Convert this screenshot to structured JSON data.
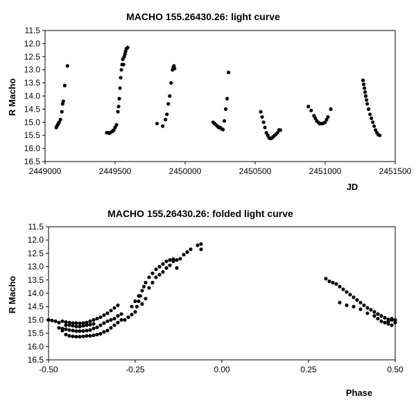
{
  "chart_data": [
    {
      "type": "scatter",
      "title": "MACHO 155.26430.26: light curve",
      "xlabel": "JD",
      "ylabel": "R Macho",
      "xlim": [
        2449000,
        2451500
      ],
      "ylim": [
        11.5,
        16.5
      ],
      "y_inverted": true,
      "grid": false,
      "legend": "none",
      "marker_color": "#000000",
      "x_ticks": [
        "2449000",
        "2449500",
        "2450000",
        "2450500",
        "2451000",
        "2451500"
      ],
      "y_ticks": [
        "11.5",
        "12.0",
        "12.5",
        "13.0",
        "13.5",
        "14.0",
        "14.5",
        "15.0",
        "15.5",
        "16.0",
        "16.5"
      ],
      "series": [
        {
          "points": [
            [
              2449080,
              15.2
            ],
            [
              2449085,
              15.15
            ],
            [
              2449090,
              15.1
            ],
            [
              2449095,
              15.05
            ],
            [
              2449100,
              15.0
            ],
            [
              2449110,
              14.9
            ],
            [
              2449120,
              14.6
            ],
            [
              2449125,
              14.3
            ],
            [
              2449130,
              14.2
            ],
            [
              2449140,
              13.6
            ],
            [
              2449160,
              12.85
            ],
            [
              2449440,
              15.4
            ],
            [
              2449450,
              15.4
            ],
            [
              2449460,
              15.42
            ],
            [
              2449470,
              15.38
            ],
            [
              2449480,
              15.35
            ],
            [
              2449490,
              15.3
            ],
            [
              2449500,
              15.2
            ],
            [
              2449510,
              15.1
            ],
            [
              2449520,
              14.6
            ],
            [
              2449525,
              14.4
            ],
            [
              2449530,
              14.1
            ],
            [
              2449535,
              13.7
            ],
            [
              2449540,
              13.3
            ],
            [
              2449545,
              13.0
            ],
            [
              2449550,
              12.8
            ],
            [
              2449555,
              12.6
            ],
            [
              2449560,
              12.8
            ],
            [
              2449565,
              12.5
            ],
            [
              2449570,
              12.4
            ],
            [
              2449575,
              12.3
            ],
            [
              2449580,
              12.2
            ],
            [
              2449590,
              12.15
            ],
            [
              2449800,
              15.05
            ],
            [
              2449840,
              15.15
            ],
            [
              2449860,
              14.9
            ],
            [
              2449870,
              14.7
            ],
            [
              2449880,
              14.3
            ],
            [
              2449890,
              14.0
            ],
            [
              2449900,
              13.5
            ],
            [
              2449910,
              13.0
            ],
            [
              2449915,
              12.9
            ],
            [
              2449920,
              12.85
            ],
            [
              2449925,
              12.95
            ],
            [
              2450200,
              15.0
            ],
            [
              2450210,
              15.05
            ],
            [
              2450220,
              15.1
            ],
            [
              2450230,
              15.15
            ],
            [
              2450240,
              15.2
            ],
            [
              2450250,
              15.2
            ],
            [
              2450260,
              15.25
            ],
            [
              2450270,
              15.28
            ],
            [
              2450280,
              14.95
            ],
            [
              2450290,
              14.5
            ],
            [
              2450300,
              14.1
            ],
            [
              2450310,
              13.1
            ],
            [
              2450540,
              14.6
            ],
            [
              2450550,
              14.8
            ],
            [
              2450560,
              15.0
            ],
            [
              2450570,
              15.2
            ],
            [
              2450580,
              15.4
            ],
            [
              2450590,
              15.5
            ],
            [
              2450600,
              15.6
            ],
            [
              2450610,
              15.62
            ],
            [
              2450620,
              15.6
            ],
            [
              2450630,
              15.55
            ],
            [
              2450640,
              15.5
            ],
            [
              2450650,
              15.45
            ],
            [
              2450660,
              15.4
            ],
            [
              2450670,
              15.3
            ],
            [
              2450680,
              15.3
            ],
            [
              2450880,
              14.4
            ],
            [
              2450900,
              14.55
            ],
            [
              2450920,
              14.75
            ],
            [
              2450930,
              14.85
            ],
            [
              2450940,
              14.95
            ],
            [
              2450950,
              15.0
            ],
            [
              2450960,
              15.05
            ],
            [
              2450970,
              15.05
            ],
            [
              2450980,
              15.05
            ],
            [
              2450990,
              15.03
            ],
            [
              2451000,
              15.0
            ],
            [
              2451010,
              14.9
            ],
            [
              2451020,
              14.8
            ],
            [
              2451040,
              14.5
            ],
            [
              2451270,
              13.4
            ],
            [
              2451275,
              13.55
            ],
            [
              2451280,
              13.7
            ],
            [
              2451285,
              13.85
            ],
            [
              2451290,
              14.0
            ],
            [
              2451295,
              14.15
            ],
            [
              2451300,
              14.3
            ],
            [
              2451310,
              14.5
            ],
            [
              2451320,
              14.7
            ],
            [
              2451330,
              14.85
            ],
            [
              2451340,
              15.0
            ],
            [
              2451350,
              15.15
            ],
            [
              2451360,
              15.3
            ],
            [
              2451370,
              15.4
            ],
            [
              2451380,
              15.48
            ],
            [
              2451390,
              15.5
            ]
          ]
        }
      ]
    },
    {
      "type": "scatter",
      "title": "MACHO 155.26430.26: folded light curve",
      "xlabel": "Phase",
      "ylabel": "R Macho",
      "xlim": [
        -0.5,
        0.5
      ],
      "ylim": [
        11.5,
        16.5
      ],
      "y_inverted": true,
      "grid": false,
      "legend": "none",
      "marker_color": "#000000",
      "x_ticks": [
        "-0.50",
        "-0.25",
        "0.00",
        "0.25",
        "0.50"
      ],
      "y_ticks": [
        "11.5",
        "12.0",
        "12.5",
        "13.0",
        "13.5",
        "14.0",
        "14.5",
        "15.0",
        "15.5",
        "16.0",
        "16.5"
      ],
      "series": [
        {
          "points": [
            [
              -0.5,
              15.0
            ],
            [
              -0.49,
              15.02
            ],
            [
              -0.48,
              15.05
            ],
            [
              -0.47,
              15.1
            ],
            [
              -0.46,
              15.4
            ],
            [
              -0.45,
              15.55
            ],
            [
              -0.44,
              15.6
            ],
            [
              -0.43,
              15.62
            ],
            [
              -0.42,
              15.63
            ],
            [
              -0.41,
              15.63
            ],
            [
              -0.4,
              15.62
            ],
            [
              -0.39,
              15.6
            ],
            [
              -0.38,
              15.6
            ],
            [
              -0.37,
              15.58
            ],
            [
              -0.36,
              15.55
            ],
            [
              -0.35,
              15.52
            ],
            [
              -0.34,
              15.45
            ],
            [
              -0.33,
              15.4
            ],
            [
              -0.32,
              15.3
            ],
            [
              -0.31,
              15.2
            ],
            [
              -0.3,
              15.1
            ],
            [
              -0.29,
              15.0
            ],
            [
              -0.47,
              15.3
            ],
            [
              -0.46,
              15.32
            ],
            [
              -0.45,
              15.35
            ],
            [
              -0.44,
              15.38
            ],
            [
              -0.43,
              15.4
            ],
            [
              -0.42,
              15.42
            ],
            [
              -0.41,
              15.42
            ],
            [
              -0.4,
              15.42
            ],
            [
              -0.39,
              15.4
            ],
            [
              -0.38,
              15.38
            ],
            [
              -0.37,
              15.32
            ],
            [
              -0.36,
              15.28
            ],
            [
              -0.35,
              15.2
            ],
            [
              -0.34,
              15.12
            ],
            [
              -0.33,
              15.05
            ],
            [
              -0.32,
              15.0
            ],
            [
              -0.31,
              14.95
            ],
            [
              -0.3,
              14.85
            ],
            [
              -0.29,
              14.78
            ],
            [
              -0.46,
              15.05
            ],
            [
              -0.45,
              15.08
            ],
            [
              -0.44,
              15.1
            ],
            [
              -0.43,
              15.12
            ],
            [
              -0.42,
              15.12
            ],
            [
              -0.41,
              15.13
            ],
            [
              -0.4,
              15.12
            ],
            [
              -0.39,
              15.1
            ],
            [
              -0.38,
              15.05
            ],
            [
              -0.37,
              15.0
            ],
            [
              -0.36,
              14.95
            ],
            [
              -0.35,
              14.9
            ],
            [
              -0.34,
              14.82
            ],
            [
              -0.33,
              14.75
            ],
            [
              -0.32,
              14.65
            ],
            [
              -0.31,
              14.55
            ],
            [
              -0.3,
              14.45
            ],
            [
              -0.45,
              15.2
            ],
            [
              -0.44,
              15.2
            ],
            [
              -0.43,
              15.22
            ],
            [
              -0.42,
              15.25
            ],
            [
              -0.41,
              15.25
            ],
            [
              -0.4,
              15.22
            ],
            [
              -0.39,
              15.2
            ],
            [
              -0.38,
              15.18
            ],
            [
              -0.37,
              15.15
            ],
            [
              -0.28,
              15.0
            ],
            [
              -0.27,
              14.9
            ],
            [
              -0.26,
              14.8
            ],
            [
              -0.25,
              14.7
            ],
            [
              -0.245,
              14.5
            ],
            [
              -0.24,
              14.3
            ],
            [
              -0.235,
              14.1
            ],
            [
              -0.23,
              13.9
            ],
            [
              -0.225,
              13.75
            ],
            [
              -0.22,
              13.6
            ],
            [
              -0.21,
              13.4
            ],
            [
              -0.2,
              13.25
            ],
            [
              -0.19,
              13.1
            ],
            [
              -0.18,
              13.0
            ],
            [
              -0.17,
              12.9
            ],
            [
              -0.16,
              12.8
            ],
            [
              -0.15,
              12.75
            ],
            [
              -0.14,
              12.72
            ],
            [
              -0.13,
              12.75
            ],
            [
              -0.26,
              14.5
            ],
            [
              -0.25,
              14.3
            ],
            [
              -0.24,
              14.1
            ],
            [
              -0.23,
              14.4
            ],
            [
              -0.22,
              14.2
            ],
            [
              -0.21,
              13.8
            ],
            [
              -0.2,
              13.6
            ],
            [
              -0.19,
              13.4
            ],
            [
              -0.18,
              13.3
            ],
            [
              -0.17,
              13.2
            ],
            [
              -0.16,
              13.05
            ],
            [
              -0.15,
              12.95
            ],
            [
              -0.14,
              12.8
            ],
            [
              -0.12,
              12.7
            ],
            [
              -0.11,
              12.55
            ],
            [
              -0.1,
              12.45
            ],
            [
              -0.09,
              12.35
            ],
            [
              -0.07,
              12.2
            ],
            [
              -0.06,
              12.15
            ],
            [
              -0.06,
              12.35
            ],
            [
              -0.13,
              13.05
            ],
            [
              0.3,
              13.45
            ],
            [
              0.31,
              13.55
            ],
            [
              0.32,
              13.6
            ],
            [
              0.33,
              13.65
            ],
            [
              0.34,
              13.75
            ],
            [
              0.35,
              13.85
            ],
            [
              0.36,
              13.95
            ],
            [
              0.37,
              14.05
            ],
            [
              0.38,
              14.15
            ],
            [
              0.39,
              14.25
            ],
            [
              0.4,
              14.35
            ],
            [
              0.41,
              14.45
            ],
            [
              0.42,
              14.55
            ],
            [
              0.43,
              14.62
            ],
            [
              0.44,
              14.7
            ],
            [
              0.45,
              14.78
            ],
            [
              0.46,
              14.85
            ],
            [
              0.47,
              14.92
            ],
            [
              0.48,
              14.98
            ],
            [
              0.49,
              15.0
            ],
            [
              0.5,
              15.02
            ],
            [
              0.34,
              14.35
            ],
            [
              0.36,
              14.45
            ],
            [
              0.38,
              14.5
            ],
            [
              0.4,
              14.6
            ],
            [
              0.42,
              14.75
            ],
            [
              0.44,
              14.85
            ],
            [
              0.45,
              14.95
            ],
            [
              0.46,
              15.05
            ],
            [
              0.47,
              15.1
            ],
            [
              0.48,
              15.15
            ],
            [
              0.49,
              15.2
            ],
            [
              0.5,
              15.1
            ],
            [
              0.49,
              14.95
            ],
            [
              0.48,
              15.05
            ],
            [
              0.5,
              15.0
            ]
          ]
        }
      ]
    }
  ]
}
